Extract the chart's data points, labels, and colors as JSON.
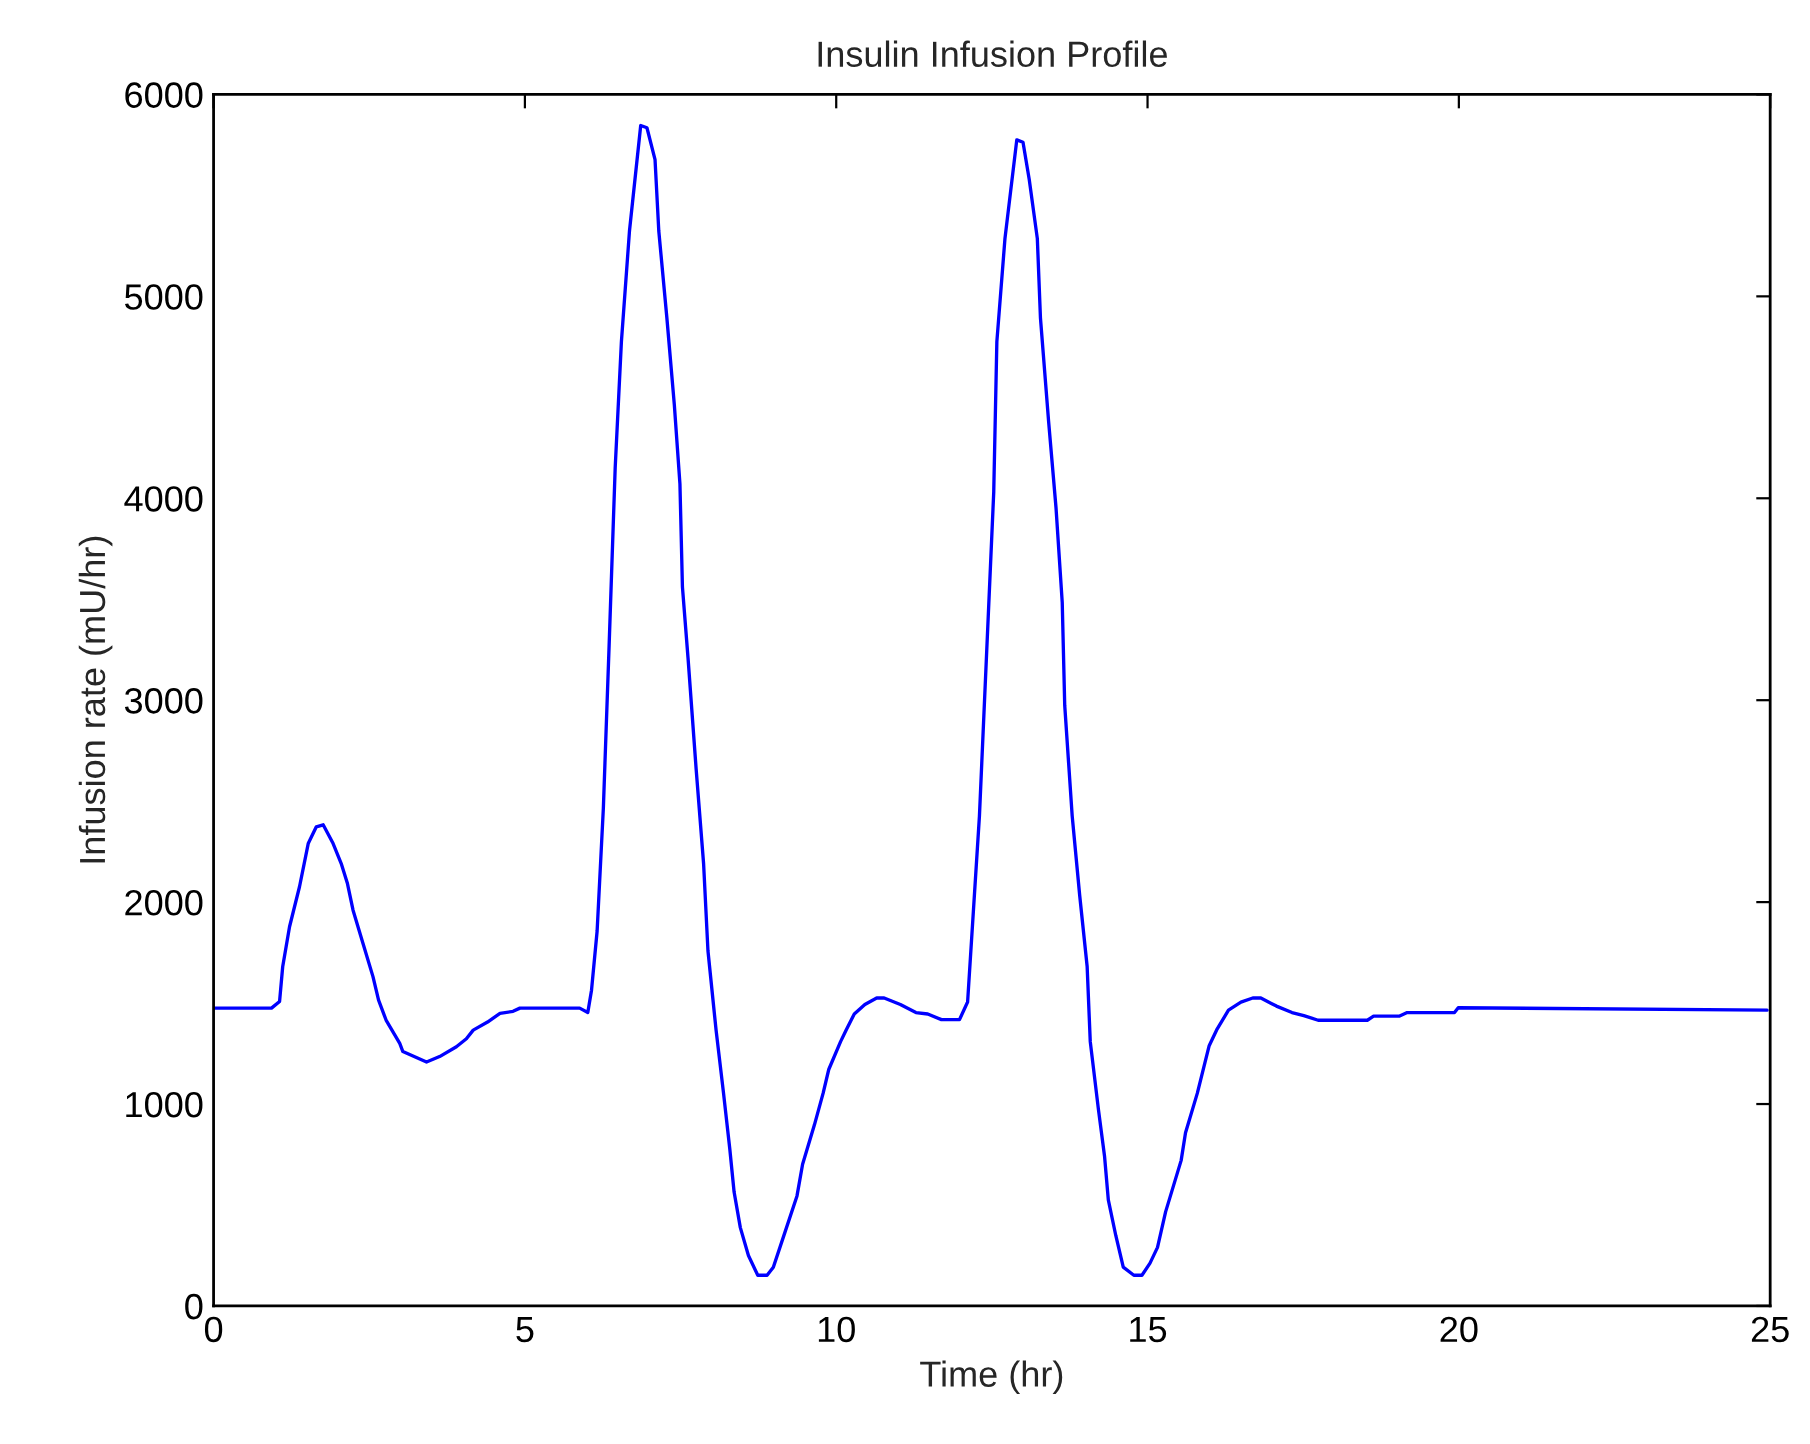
{
  "chart_data": {
    "type": "line",
    "title": "Insulin Infusion Profile",
    "xlabel": "Time (hr)",
    "ylabel": "Infusion rate (mU/hr)",
    "xlim": [
      0,
      25
    ],
    "xticks": [
      0,
      5,
      10,
      15,
      20,
      25
    ],
    "ylim": [
      0,
      6000
    ],
    "yticks": [
      0,
      1000,
      2000,
      3000,
      4000,
      5000,
      6000
    ],
    "grid": false,
    "marker": "none",
    "line_style": "solid",
    "series": [
      {
        "color": "#0000ff",
        "x": [
          0,
          0.93,
          1.06,
          1.11,
          1.22,
          1.38,
          1.52,
          1.65,
          1.76,
          1.92,
          2.05,
          2.15,
          2.24,
          2.4,
          2.56,
          2.65,
          2.77,
          2.99,
          3.04,
          3.42,
          3.63,
          3.9,
          4.06,
          4.17,
          4.4,
          4.6,
          4.81,
          4.92,
          5.88,
          6.01,
          6.07,
          6.16,
          6.26,
          6.35,
          6.45,
          6.55,
          6.68,
          6.86,
          6.96,
          7.09,
          7.15,
          7.28,
          7.4,
          7.49,
          7.53,
          7.62,
          7.75,
          7.87,
          7.94,
          8.07,
          8.19,
          8.29,
          8.36,
          8.46,
          8.59,
          8.74,
          8.89,
          8.99,
          9.18,
          9.37,
          9.46,
          9.65,
          9.79,
          9.88,
          10.07,
          10.16,
          10.29,
          10.46,
          10.65,
          10.77,
          11.03,
          11.28,
          11.47,
          11.69,
          11.98,
          12.11,
          12.3,
          12.53,
          12.58,
          12.71,
          12.9,
          13.0,
          13.1,
          13.23,
          13.28,
          13.41,
          13.53,
          13.63,
          13.67,
          13.79,
          13.91,
          14.03,
          14.08,
          14.21,
          14.31,
          14.37,
          14.49,
          14.61,
          14.78,
          14.91,
          15.04,
          15.16,
          15.29,
          15.54,
          15.61,
          15.8,
          15.99,
          16.11,
          16.3,
          16.5,
          16.69,
          16.82,
          17.07,
          17.32,
          17.51,
          17.74,
          18.53,
          18.63,
          19.04,
          19.17,
          19.93,
          19.99,
          24.95
        ],
        "values": [
          1475,
          1475,
          1508,
          1680,
          1878,
          2076,
          2290,
          2373,
          2383,
          2290,
          2191,
          2092,
          1960,
          1795,
          1631,
          1515,
          1416,
          1300,
          1260,
          1208,
          1235,
          1284,
          1323,
          1366,
          1406,
          1449,
          1459,
          1475,
          1475,
          1453,
          1564,
          1857,
          2465,
          3248,
          4150,
          4776,
          5325,
          5846,
          5835,
          5677,
          5325,
          4894,
          4463,
          4071,
          3561,
          3209,
          2660,
          2190,
          1759,
          1367,
          1054,
          780,
          564,
          388,
          250,
          152,
          152,
          192,
          368,
          545,
          702,
          897,
          1054,
          1171,
          1309,
          1367,
          1446,
          1493,
          1525,
          1525,
          1493,
          1453,
          1446,
          1418,
          1418,
          1505,
          2426,
          4032,
          4776,
          5286,
          5775,
          5763,
          5579,
          5286,
          4894,
          4384,
          3953,
          3483,
          2974,
          2426,
          2034,
          1681,
          1309,
          976,
          740,
          525,
          349,
          192,
          152,
          152,
          212,
          290,
          466,
          721,
          858,
          1054,
          1289,
          1367,
          1465,
          1505,
          1525,
          1525,
          1485,
          1453,
          1438,
          1415,
          1415,
          1435,
          1435,
          1453,
          1453,
          1477,
          1465
        ]
      }
    ]
  }
}
